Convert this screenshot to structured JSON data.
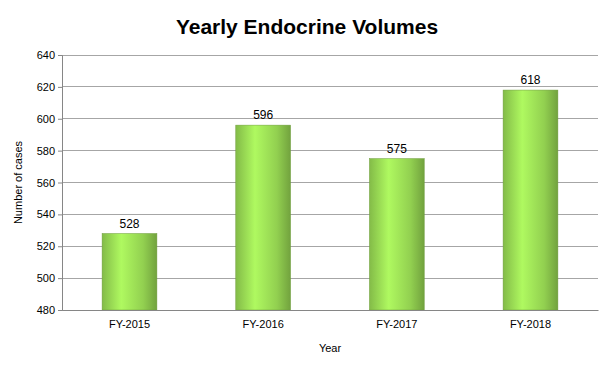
{
  "chart_data": {
    "type": "bar",
    "title": "Yearly Endocrine Volumes",
    "x_label": "Year",
    "y_label": "Number of cases",
    "categories": [
      "FY-2015",
      "FY-2016",
      "FY-2017",
      "FY-2018"
    ],
    "values": [
      528,
      596,
      575,
      618
    ],
    "color": "#92d050",
    "ylim": [
      480,
      640
    ],
    "yticks": [
      480,
      500,
      520,
      540,
      560,
      580,
      600,
      620,
      640
    ],
    "grid": true,
    "data_labels": true
  }
}
